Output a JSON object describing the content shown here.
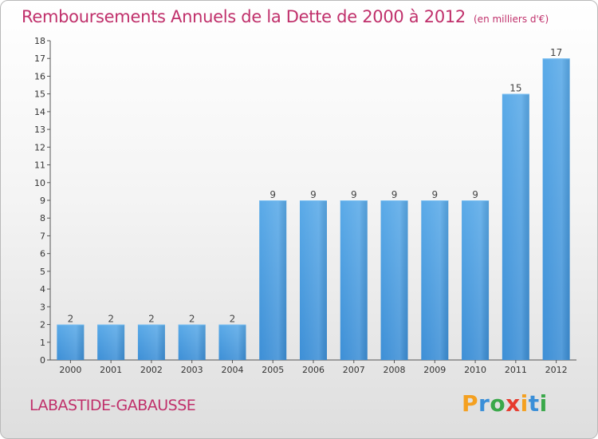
{
  "chart_data": {
    "type": "bar",
    "title": "Remboursements Annuels de la Dette de 2000 à 2012",
    "subtitle": "(en milliers d'€)",
    "categories": [
      "2000",
      "2001",
      "2002",
      "2003",
      "2004",
      "2005",
      "2006",
      "2007",
      "2008",
      "2009",
      "2010",
      "2011",
      "2012"
    ],
    "values": [
      2,
      2,
      2,
      2,
      2,
      9,
      9,
      9,
      9,
      9,
      9,
      15,
      17
    ],
    "data_labels": [
      "2",
      "2",
      "2",
      "2",
      "2",
      "9",
      "9",
      "9",
      "9",
      "9",
      "9",
      "15",
      "17"
    ],
    "yticks": [
      "0",
      "1",
      "2",
      "3",
      "4",
      "5",
      "6",
      "7",
      "8",
      "9",
      "10",
      "11",
      "12",
      "13",
      "14",
      "15",
      "16",
      "17",
      "18"
    ],
    "ylim": [
      0,
      18
    ],
    "grid": false,
    "bar_color": "#3d8fd6",
    "bar_color_light": "#5aaae8"
  },
  "footer": {
    "place": "LABASTIDE-GABAUSSE",
    "logo_letters": [
      "P",
      "r",
      "o",
      "x",
      "i",
      "t",
      "i"
    ],
    "logo_colors": [
      "#f4a020",
      "#3a8fd8",
      "#3aa84a",
      "#e63b2e",
      "#f4a020",
      "#3a8fd8",
      "#3aa84a"
    ]
  }
}
